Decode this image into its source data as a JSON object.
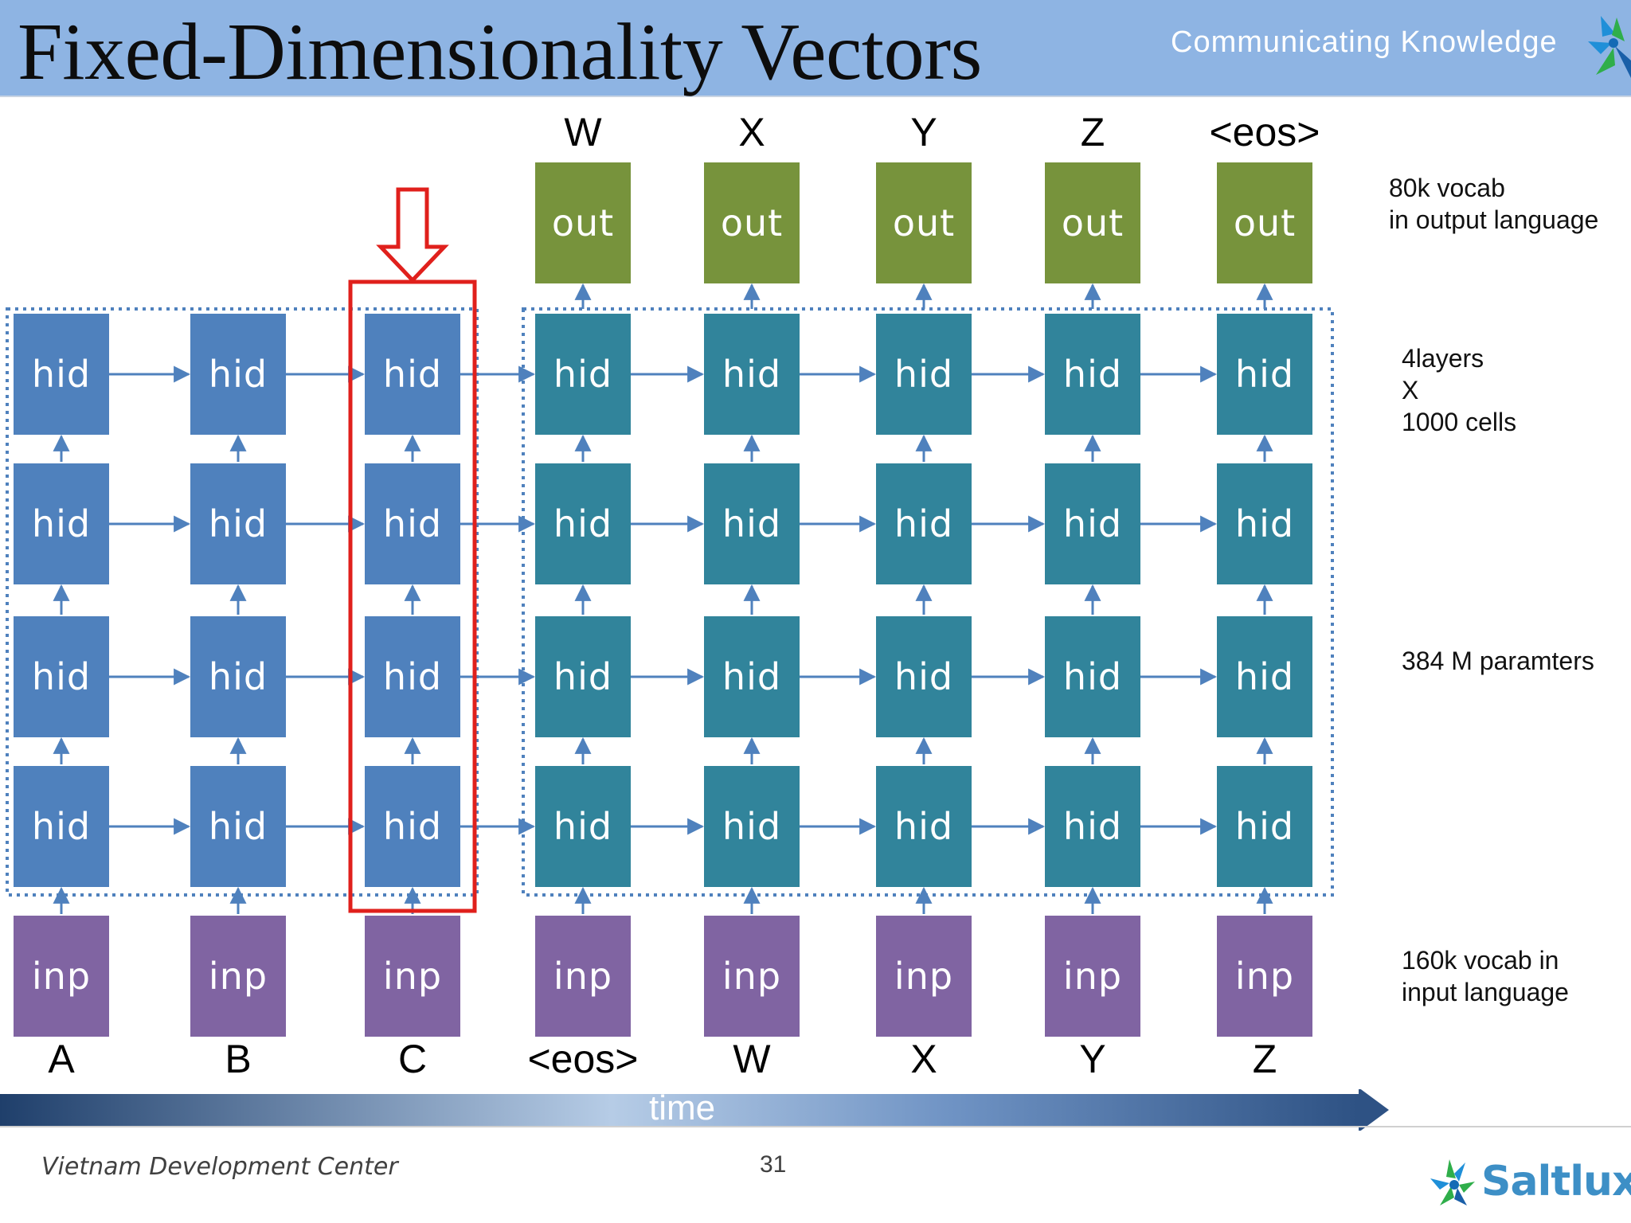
{
  "header": {
    "title": "Fixed-Dimensionality Vectors",
    "tagline": "Communicating Knowledge"
  },
  "colors": {
    "header_bg": "#8eb4e3",
    "encoder_hidden": "#4f81bd",
    "decoder_hidden": "#31849b",
    "output": "#77933c",
    "input": "#8064a2",
    "arrow": "#4f81bd",
    "highlight": "#e0201c"
  },
  "diagram": {
    "output_tokens": [
      "W",
      "X",
      "Y",
      "Z",
      "<eos>"
    ],
    "output_label": "out",
    "hidden_label": "hid",
    "input_label": "inp",
    "input_tokens": [
      "A",
      "B",
      "C",
      "<eos>",
      "W",
      "X",
      "Y",
      "Z"
    ],
    "encoder_steps": 3,
    "decoder_steps": 5,
    "layers": 4,
    "highlighted_step": 3
  },
  "notes": {
    "output_vocab": "80k vocab\nin output language",
    "layers": "4layers\nX\n1000 cells",
    "params": "384 M paramters",
    "input_vocab": "160k vocab in\ninput language"
  },
  "timeline": {
    "label": "time"
  },
  "footer": {
    "organization": "Vietnam Development Center",
    "page_number": "31",
    "brand": "Saltlux"
  }
}
